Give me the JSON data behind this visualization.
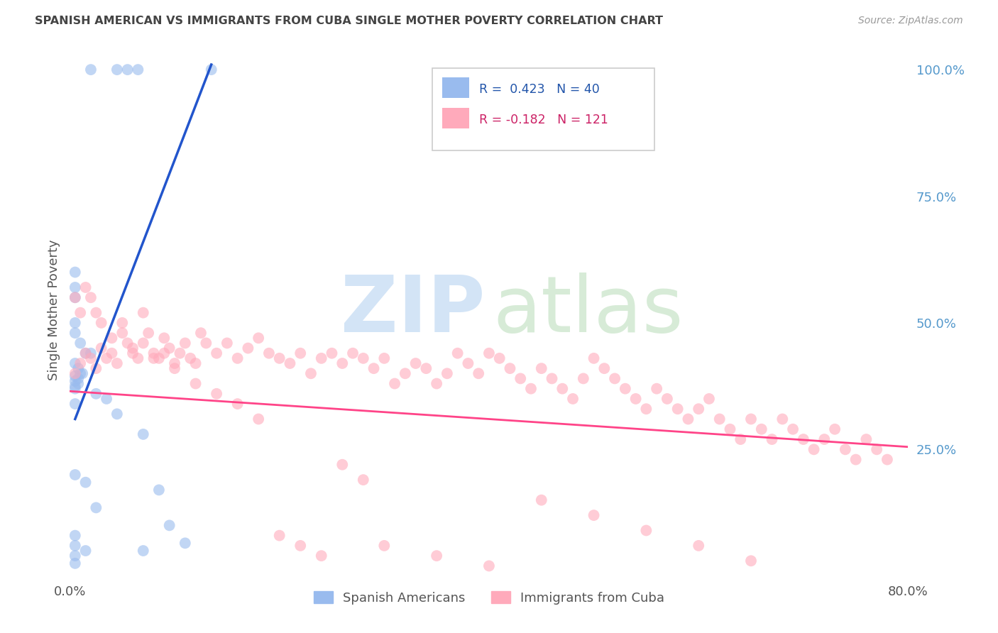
{
  "title": "SPANISH AMERICAN VS IMMIGRANTS FROM CUBA SINGLE MOTHER POVERTY CORRELATION CHART",
  "source": "Source: ZipAtlas.com",
  "ylabel": "Single Mother Poverty",
  "right_ytick_labels": [
    "100.0%",
    "75.0%",
    "50.0%",
    "25.0%"
  ],
  "right_ytick_values": [
    1.0,
    0.75,
    0.5,
    0.25
  ],
  "legend_label_blue": "Spanish Americans",
  "legend_label_pink": "Immigrants from Cuba",
  "xlim": [
    0.0,
    0.8
  ],
  "ylim": [
    0.0,
    1.05
  ],
  "background_color": "#ffffff",
  "grid_color": "#cccccc",
  "blue_color": "#99bbee",
  "pink_color": "#ffaabb",
  "blue_line_color": "#2255cc",
  "pink_line_color": "#ff4488",
  "blue_line_x": [
    0.005,
    0.135
  ],
  "blue_line_y": [
    0.31,
    1.01
  ],
  "pink_line_x": [
    0.0,
    0.8
  ],
  "pink_line_y": [
    0.365,
    0.255
  ],
  "blue_points_x": [
    0.02,
    0.045,
    0.055,
    0.065,
    0.135,
    0.005,
    0.005,
    0.005,
    0.005,
    0.005,
    0.01,
    0.015,
    0.02,
    0.005,
    0.008,
    0.01,
    0.012,
    0.005,
    0.008,
    0.005,
    0.008,
    0.005,
    0.005,
    0.025,
    0.035,
    0.005,
    0.045,
    0.07,
    0.085,
    0.095,
    0.11,
    0.005,
    0.015,
    0.025,
    0.005,
    0.005,
    0.015,
    0.07,
    0.005,
    0.005
  ],
  "blue_points_y": [
    1.0,
    1.0,
    1.0,
    1.0,
    1.0,
    0.6,
    0.57,
    0.55,
    0.5,
    0.48,
    0.46,
    0.44,
    0.44,
    0.42,
    0.41,
    0.4,
    0.4,
    0.395,
    0.39,
    0.385,
    0.38,
    0.375,
    0.37,
    0.36,
    0.35,
    0.34,
    0.32,
    0.28,
    0.17,
    0.1,
    0.065,
    0.2,
    0.185,
    0.135,
    0.08,
    0.06,
    0.05,
    0.05,
    0.04,
    0.025
  ],
  "pink_points_x": [
    0.005,
    0.01,
    0.015,
    0.02,
    0.025,
    0.03,
    0.035,
    0.04,
    0.045,
    0.05,
    0.055,
    0.06,
    0.065,
    0.07,
    0.075,
    0.08,
    0.085,
    0.09,
    0.095,
    0.1,
    0.105,
    0.11,
    0.115,
    0.12,
    0.125,
    0.13,
    0.14,
    0.15,
    0.16,
    0.17,
    0.18,
    0.19,
    0.2,
    0.21,
    0.22,
    0.23,
    0.24,
    0.25,
    0.26,
    0.27,
    0.28,
    0.29,
    0.3,
    0.31,
    0.32,
    0.33,
    0.34,
    0.35,
    0.36,
    0.37,
    0.38,
    0.39,
    0.4,
    0.41,
    0.42,
    0.43,
    0.44,
    0.45,
    0.46,
    0.47,
    0.48,
    0.49,
    0.5,
    0.51,
    0.52,
    0.53,
    0.54,
    0.55,
    0.56,
    0.57,
    0.58,
    0.59,
    0.6,
    0.61,
    0.62,
    0.63,
    0.64,
    0.65,
    0.66,
    0.67,
    0.68,
    0.69,
    0.7,
    0.71,
    0.72,
    0.73,
    0.74,
    0.75,
    0.76,
    0.77,
    0.78,
    0.005,
    0.01,
    0.015,
    0.02,
    0.025,
    0.03,
    0.04,
    0.05,
    0.06,
    0.07,
    0.08,
    0.09,
    0.1,
    0.12,
    0.14,
    0.16,
    0.18,
    0.2,
    0.22,
    0.24,
    0.26,
    0.28,
    0.3,
    0.35,
    0.4,
    0.45,
    0.5,
    0.55,
    0.6,
    0.65
  ],
  "pink_points_y": [
    0.4,
    0.42,
    0.44,
    0.43,
    0.41,
    0.45,
    0.43,
    0.44,
    0.42,
    0.5,
    0.46,
    0.44,
    0.43,
    0.52,
    0.48,
    0.44,
    0.43,
    0.47,
    0.45,
    0.42,
    0.44,
    0.46,
    0.43,
    0.42,
    0.48,
    0.46,
    0.44,
    0.46,
    0.43,
    0.45,
    0.47,
    0.44,
    0.43,
    0.42,
    0.44,
    0.4,
    0.43,
    0.44,
    0.42,
    0.44,
    0.43,
    0.41,
    0.43,
    0.38,
    0.4,
    0.42,
    0.41,
    0.38,
    0.4,
    0.44,
    0.42,
    0.4,
    0.44,
    0.43,
    0.41,
    0.39,
    0.37,
    0.41,
    0.39,
    0.37,
    0.35,
    0.39,
    0.43,
    0.41,
    0.39,
    0.37,
    0.35,
    0.33,
    0.37,
    0.35,
    0.33,
    0.31,
    0.33,
    0.35,
    0.31,
    0.29,
    0.27,
    0.31,
    0.29,
    0.27,
    0.31,
    0.29,
    0.27,
    0.25,
    0.27,
    0.29,
    0.25,
    0.23,
    0.27,
    0.25,
    0.23,
    0.55,
    0.52,
    0.57,
    0.55,
    0.52,
    0.5,
    0.47,
    0.48,
    0.45,
    0.46,
    0.43,
    0.44,
    0.41,
    0.38,
    0.36,
    0.34,
    0.31,
    0.08,
    0.06,
    0.04,
    0.22,
    0.19,
    0.06,
    0.04,
    0.02,
    0.15,
    0.12,
    0.09,
    0.06,
    0.03
  ]
}
